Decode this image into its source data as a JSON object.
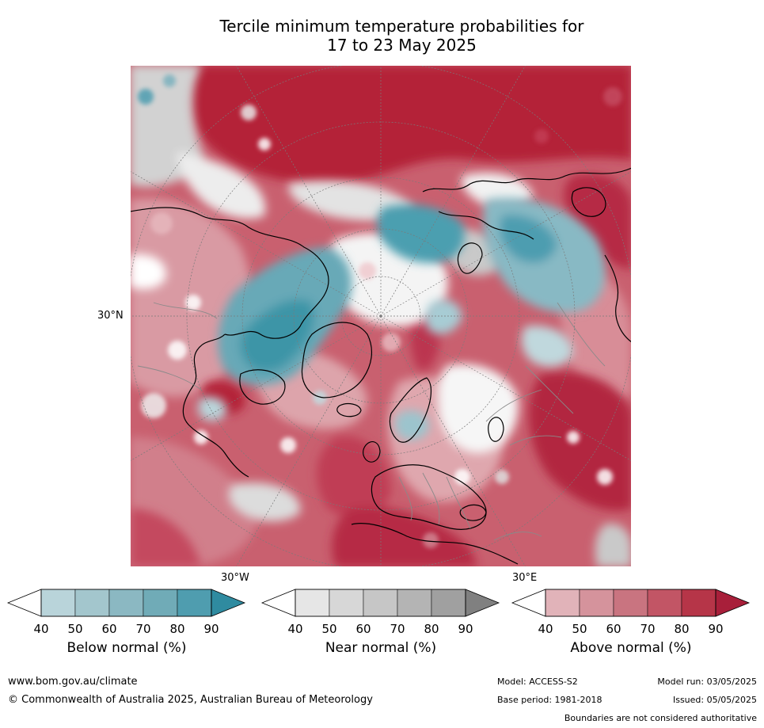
{
  "title": {
    "line1": "Tercile minimum temperature probabilities for",
    "line2": "17 to 23 May 2025"
  },
  "map": {
    "lat_label": "30°N",
    "lon_label_left": "30°W",
    "lon_label_right": "30°E",
    "colors": {
      "ocean_warm": "#c5586a",
      "land_warm": "#d68390",
      "strong_warm": "#b4203b",
      "cool": "#4ea3b3",
      "cool_light": "#a7ccd4",
      "near": "#d4d4d4",
      "white": "#ffffff",
      "coast": "#000000",
      "border": "#8a8a8a"
    }
  },
  "colorbars": [
    {
      "title": "Below normal (%)",
      "ticks": [
        "40",
        "50",
        "60",
        "70",
        "80",
        "90"
      ],
      "colors": [
        "#b9d4da",
        "#a3c6cd",
        "#8bb8c2",
        "#70abb7",
        "#4f9daf",
        "#2f8ba0"
      ]
    },
    {
      "title": "Near normal (%)",
      "ticks": [
        "40",
        "50",
        "60",
        "70",
        "80",
        "90"
      ],
      "colors": [
        "#e6e6e6",
        "#d7d7d7",
        "#c6c6c6",
        "#b4b4b4",
        "#a0a0a0",
        "#808080"
      ]
    },
    {
      "title": "Above normal (%)",
      "ticks": [
        "40",
        "50",
        "60",
        "70",
        "80",
        "90"
      ],
      "colors": [
        "#e1b3b9",
        "#d5939c",
        "#c97480",
        "#c25565",
        "#b63548",
        "#a81f3a"
      ]
    }
  ],
  "footer": {
    "url": "www.bom.gov.au/climate",
    "copyright": "© Commonwealth of Australia 2025, Australian Bureau of Meteorology",
    "model": "Model: ACCESS-S2",
    "model_run": "Model run: 03/05/2025",
    "base_period": "Base period: 1981-2018",
    "issued": "Issued: 05/05/2025",
    "disclaimer": "Boundaries are not considered authoritative"
  }
}
